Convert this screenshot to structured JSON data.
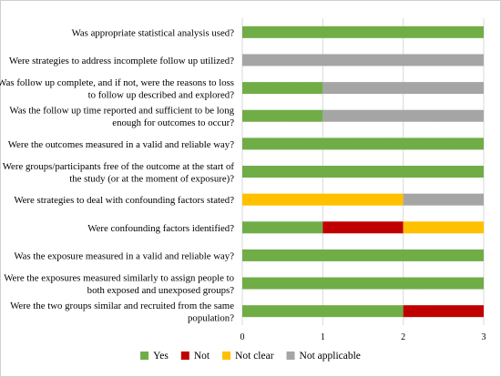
{
  "chart_data": {
    "type": "bar",
    "orientation": "horizontal",
    "stacked": true,
    "xlim": [
      0,
      3
    ],
    "x_ticks": [
      0,
      1,
      2,
      3
    ],
    "grid": "vertical",
    "legend_position": "bottom",
    "series": [
      {
        "name": "Yes",
        "color": "#70ad47",
        "values": [
          3,
          0,
          1,
          1,
          3,
          3,
          0,
          1,
          3,
          3,
          2
        ]
      },
      {
        "name": "Not",
        "color": "#c00000",
        "values": [
          0,
          0,
          0,
          0,
          0,
          0,
          0,
          1,
          0,
          0,
          1
        ]
      },
      {
        "name": "Not clear",
        "color": "#ffc000",
        "values": [
          0,
          0,
          0,
          0,
          0,
          0,
          2,
          1,
          0,
          0,
          0
        ]
      },
      {
        "name": "Not applicable",
        "color": "#a5a5a5",
        "values": [
          0,
          3,
          2,
          2,
          0,
          0,
          1,
          0,
          0,
          0,
          0
        ]
      }
    ],
    "categories": [
      [
        "Was appropriate statistical analysis used?"
      ],
      [
        "Were strategies to address incomplete follow up utilized?"
      ],
      [
        "Was follow up complete, and if not, were the reasons to loss",
        "to follow up described and explored?"
      ],
      [
        "Was the follow up time reported and sufficient to be long",
        "enough for outcomes to occur?"
      ],
      [
        "Were the outcomes measured in a valid and reliable way?"
      ],
      [
        "Were groups/participants free of the outcome at the start of",
        "the study (or at the moment of exposure)?"
      ],
      [
        "Were strategies to deal with confounding factors stated?"
      ],
      [
        "Were confounding factors identified?"
      ],
      [
        "Was the exposure measured in a valid and reliable way?"
      ],
      [
        "Were the exposures measured similarly to assign people to",
        "both exposed and unexposed groups?"
      ],
      [
        "Were the two groups similar and recruited from the same",
        "population?"
      ]
    ]
  }
}
